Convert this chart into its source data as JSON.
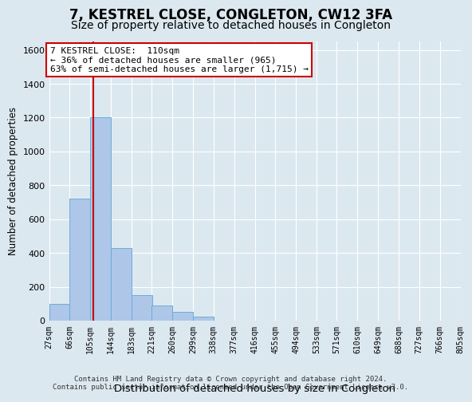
{
  "title": "7, KESTREL CLOSE, CONGLETON, CW12 3FA",
  "subtitle": "Size of property relative to detached houses in Congleton",
  "xlabel": "Distribution of detached houses by size in Congleton",
  "ylabel": "Number of detached properties",
  "footer_line1": "Contains HM Land Registry data © Crown copyright and database right 2024.",
  "footer_line2": "Contains public sector information licensed under the Open Government Licence v3.0.",
  "bin_edges": [
    27,
    66,
    105,
    144,
    183,
    221,
    260,
    299,
    338,
    377,
    416,
    455,
    494,
    533,
    571,
    610,
    649,
    688,
    727,
    766,
    805
  ],
  "bin_labels": [
    "27sqm",
    "66sqm",
    "105sqm",
    "144sqm",
    "183sqm",
    "221sqm",
    "260sqm",
    "299sqm",
    "338sqm",
    "377sqm",
    "416sqm",
    "455sqm",
    "494sqm",
    "533sqm",
    "571sqm",
    "610sqm",
    "649sqm",
    "688sqm",
    "727sqm",
    "766sqm",
    "805sqm"
  ],
  "bar_heights": [
    100,
    720,
    1200,
    430,
    150,
    90,
    50,
    25,
    0,
    0,
    0,
    0,
    0,
    0,
    0,
    0,
    0,
    0,
    0,
    0
  ],
  "bar_color": "#aec6e8",
  "bar_edge_color": "#6aaed6",
  "bg_color": "#dce8f0",
  "property_line_x": 110,
  "property_line_color": "#cc0000",
  "annotation_text": "7 KESTREL CLOSE:  110sqm\n← 36% of detached houses are smaller (965)\n63% of semi-detached houses are larger (1,715) →",
  "annotation_box_color": "#ffffff",
  "annotation_box_edge_color": "#cc0000",
  "ylim": [
    0,
    1650
  ],
  "yticks": [
    0,
    200,
    400,
    600,
    800,
    1000,
    1200,
    1400,
    1600
  ],
  "grid_color": "#ffffff",
  "title_fontsize": 12,
  "subtitle_fontsize": 10,
  "annotation_fontsize": 8
}
